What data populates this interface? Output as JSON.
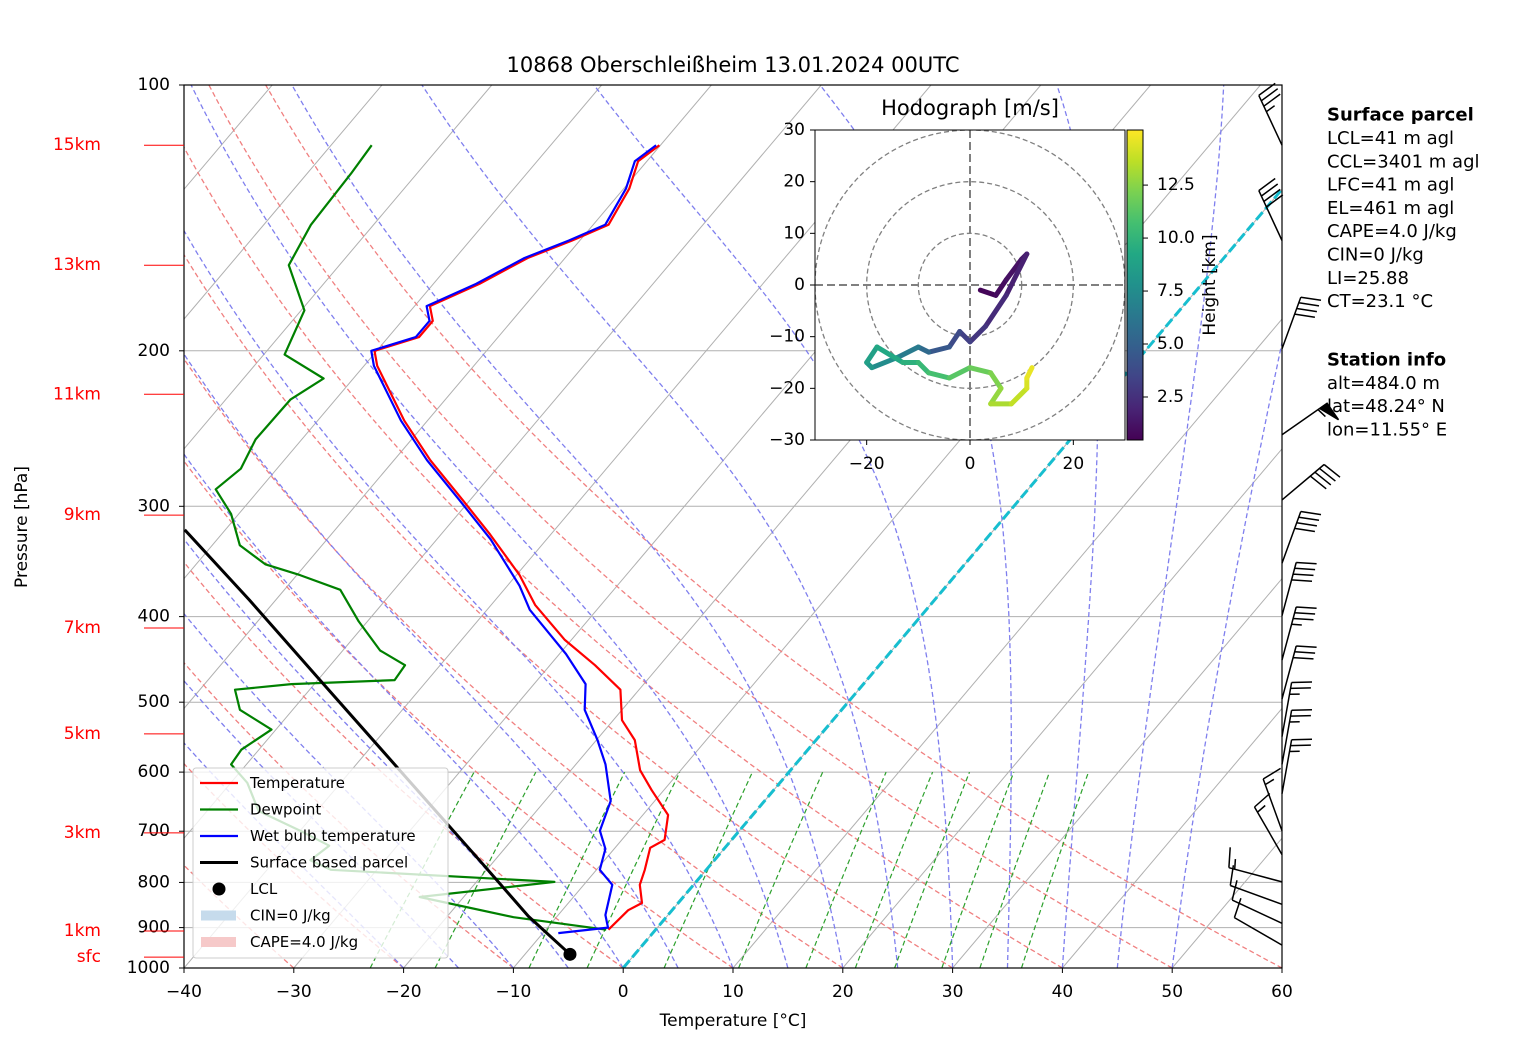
{
  "chart_data": {
    "type": "skewt",
    "title": "10868 Oberschleißheim 13.01.2024 00UTC",
    "xlabel": "Temperature [°C]",
    "ylabel": "Pressure [hPa]",
    "xlim": [
      -40,
      60
    ],
    "ylim": [
      1000,
      100
    ],
    "ylog": true,
    "grid": true,
    "legend": "lower left",
    "xticks": [
      {
        "value": -40,
        "label": "−40"
      },
      {
        "value": -30,
        "label": "−30"
      },
      {
        "value": -20,
        "label": "−20"
      },
      {
        "value": -10,
        "label": "−10"
      },
      0,
      10,
      20,
      30,
      40,
      50,
      60
    ],
    "yticks": [
      100,
      200,
      300,
      400,
      500,
      600,
      700,
      800,
      900,
      1000
    ],
    "height_labels": [
      {
        "value": 117,
        "label": "15km"
      },
      {
        "value": 160,
        "label": "13km"
      },
      {
        "value": 224,
        "label": "11km"
      },
      {
        "value": 307,
        "label": "9km"
      },
      {
        "value": 412,
        "label": "7km"
      },
      {
        "value": 543,
        "label": "5km"
      },
      {
        "value": 703,
        "label": "3km"
      },
      {
        "value": 908,
        "label": "1km"
      },
      {
        "value": 972,
        "label": "sfc"
      }
    ],
    "series": [
      {
        "name": "Temperature",
        "color": "#ff0000",
        "pressure": [
          905,
          860,
          844,
          805,
          774,
          731,
          716,
          671,
          629,
          597,
          552,
          524,
          484,
          454,
          425,
          388,
          359,
          323,
          295,
          266,
          240,
          208,
          200,
          193,
          185,
          178,
          168,
          157,
          150,
          144,
          131,
          122,
          117
        ],
        "values": [
          -4.3,
          -4.0,
          -3.3,
          -4.9,
          -5.6,
          -6.8,
          -6.1,
          -7.7,
          -11.1,
          -13.7,
          -16.5,
          -19.2,
          -21.7,
          -25.9,
          -30.6,
          -36.0,
          -39.7,
          -45.5,
          -50.7,
          -56.7,
          -62.1,
          -68.8,
          -70.2,
          -67.2,
          -67.2,
          -68.6,
          -65.8,
          -63.4,
          -60.7,
          -58.6,
          -59.5,
          -60.8,
          -60.1
        ]
      },
      {
        "name": "Dewpoint",
        "color": "#008000",
        "pressure": [
          905,
          876,
          831,
          799,
          774,
          755,
          727,
          699,
          664,
          617,
          588,
          566,
          537,
          510,
          484,
          477,
          472,
          454,
          437,
          405,
          373,
          359,
          349,
          332,
          306,
          287,
          272,
          252,
          227,
          215,
          202,
          180,
          160,
          144,
          126,
          117
        ],
        "values": [
          -4.5,
          -13.9,
          -24.0,
          -12.9,
          -34.2,
          -36.8,
          -36.2,
          -40.0,
          -45.3,
          -48.5,
          -51.4,
          -51.6,
          -50.4,
          -54.8,
          -56.8,
          -52.1,
          -43.0,
          -43.2,
          -46.6,
          -50.8,
          -54.9,
          -59.7,
          -63.7,
          -67.5,
          -70.7,
          -74.0,
          -73.3,
          -74.2,
          -74.1,
          -72.7,
          -78.1,
          -79.7,
          -84.6,
          -85.7,
          -86.0,
          -86.3
        ]
      },
      {
        "name": "Wet bulb temperature",
        "color": "#0000ff",
        "pressure": [
          913,
          900,
          871,
          805,
          774,
          733,
          699,
          647,
          588,
          552,
          510,
          477,
          441,
          393,
          369,
          327,
          295,
          266,
          240,
          208,
          200,
          193,
          185,
          178,
          168,
          157,
          150,
          144,
          131,
          122,
          117
        ],
        "values": [
          -8.6,
          -4.5,
          -5.7,
          -7.4,
          -9.7,
          -10.8,
          -12.7,
          -14.0,
          -17.3,
          -19.9,
          -23.4,
          -25.3,
          -29.4,
          -36.1,
          -38.9,
          -45.1,
          -51.0,
          -57.0,
          -62.4,
          -69.1,
          -70.5,
          -67.5,
          -67.5,
          -68.9,
          -66.1,
          -63.7,
          -61.0,
          -58.9,
          -59.8,
          -61.1,
          -60.4
        ]
      },
      {
        "name": "Surface based parcel",
        "color": "#000000",
        "pressure": [
          965,
          874,
          755,
          597,
          472,
          383,
          319
        ],
        "values": [
          -5.9,
          -12.6,
          -21.4,
          -35.6,
          -49.8,
          -62.4,
          -73.7
        ]
      }
    ],
    "lcl": {
      "name": "LCL",
      "color": "#000000",
      "pressure": 965,
      "value": -5.9
    },
    "legend_patches": [
      {
        "name": "CIN=0 J/kg",
        "color": "#c6dbec"
      },
      {
        "name": "CAPE=4.0 J/kg",
        "color": "#f6c9c9"
      }
    ],
    "wind_barbs": {
      "pressure": [
        117,
        150,
        199,
        249,
        295,
        348,
        399,
        448,
        496,
        547,
        588,
        635,
        699,
        744,
        799,
        847,
        890,
        942
      ],
      "direction": [
        335,
        335,
        20,
        55,
        50,
        20,
        15,
        15,
        15,
        10,
        10,
        10,
        340,
        330,
        285,
        290,
        295,
        300
      ],
      "speed": [
        35,
        40,
        40,
        55,
        40,
        40,
        40,
        35,
        30,
        25,
        25,
        25,
        15,
        15,
        15,
        10,
        10,
        10
      ]
    },
    "hodograph": {
      "title": "Hodograph [m/s]",
      "xlim": [
        -30,
        30
      ],
      "ylim": [
        -30,
        30
      ],
      "xticks": [
        {
          "value": -20,
          "label": "−20"
        },
        0,
        20
      ],
      "yticks": [
        30,
        20,
        10,
        0,
        {
          "value": -10,
          "label": "−10"
        },
        {
          "value": -20,
          "label": "−20"
        },
        {
          "value": -30,
          "label": "−30"
        }
      ],
      "rings": [
        10,
        20,
        30
      ],
      "u": [
        2,
        5,
        7,
        10,
        11,
        7,
        3,
        0,
        -2,
        -4,
        -8,
        -10,
        -14,
        -19,
        -20,
        -18,
        -13,
        -10,
        -8,
        -4,
        0,
        4,
        6,
        4,
        8,
        11,
        11,
        12
      ],
      "v": [
        -1,
        -2,
        1,
        5,
        6,
        -2,
        -8,
        -11,
        -9,
        -12,
        -13,
        -12,
        -14,
        -16,
        -15,
        -12,
        -15,
        -15,
        -17,
        -18,
        -16,
        -17,
        -20,
        -23,
        -23,
        -20,
        -18,
        -16
      ],
      "height": [
        0.5,
        0.8,
        1.0,
        1.3,
        1.6,
        2.0,
        2.5,
        3.0,
        3.5,
        4.0,
        5.0,
        6.0,
        7.0,
        8.0,
        8.5,
        9.0,
        9.5,
        10.0,
        10.5,
        11.0,
        11.5,
        12.0,
        12.5,
        13.0,
        13.5,
        14.0,
        14.5,
        14.8
      ],
      "colorbar": {
        "label": "Height [km]",
        "clim": [
          0.47,
          15.1
        ],
        "ticks": [
          2.5,
          {
            "value": 5,
            "label": "5.0"
          },
          7.5,
          {
            "value": 10,
            "label": "10.0"
          },
          12.5
        ]
      }
    }
  },
  "info_panel": {
    "surface_parcel": {
      "title": "Surface parcel",
      "lines": [
        "LCL=41 m agl",
        "CCL=3401 m agl",
        "LFC=41 m agl",
        "EL=461 m agl",
        "CAPE=4.0 J/kg",
        "CIN=0 J/kg",
        "LI=25.88",
        "CT=23.1 °C"
      ]
    },
    "station_info": {
      "title": "Station info",
      "lines": [
        "alt=484.0 m",
        "lat=48.24° N",
        "lon=11.55° E"
      ]
    }
  }
}
